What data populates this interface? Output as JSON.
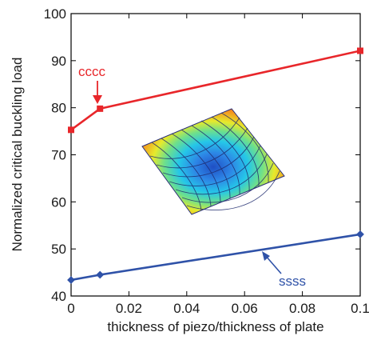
{
  "chart_data": {
    "type": "line",
    "title": "",
    "xlabel": "thickness of piezo/thickness of plate",
    "ylabel": "Normalized critical buckling load",
    "xlim": [
      0,
      0.1
    ],
    "ylim": [
      40,
      100
    ],
    "x_ticks": [
      0,
      0.02,
      0.04,
      0.06,
      0.08,
      0.1
    ],
    "x_tick_labels": [
      "0",
      "0.02",
      "0.04",
      "0.06",
      "0.08",
      "0.1"
    ],
    "y_ticks": [
      40,
      50,
      60,
      70,
      80,
      90,
      100
    ],
    "y_tick_labels": [
      "40",
      "50",
      "60",
      "70",
      "80",
      "90",
      "100"
    ],
    "grid": false,
    "series": [
      {
        "name": "cccc",
        "color": "#e8262a",
        "marker": "square",
        "x": [
          0,
          0.01,
          0.1
        ],
        "y": [
          75.3,
          79.8,
          92.1
        ]
      },
      {
        "name": "ssss",
        "color": "#2f52a8",
        "marker": "diamond",
        "x": [
          0,
          0.01,
          0.1
        ],
        "y": [
          43.4,
          44.5,
          53.1
        ]
      }
    ],
    "annotations": [
      {
        "text": "cccc",
        "color": "#e8262a",
        "series": 0
      },
      {
        "text": "ssss",
        "color": "#2f52a8",
        "series": 1
      }
    ],
    "inset": {
      "description_icon": "buckling-mode-shape-icon"
    }
  }
}
